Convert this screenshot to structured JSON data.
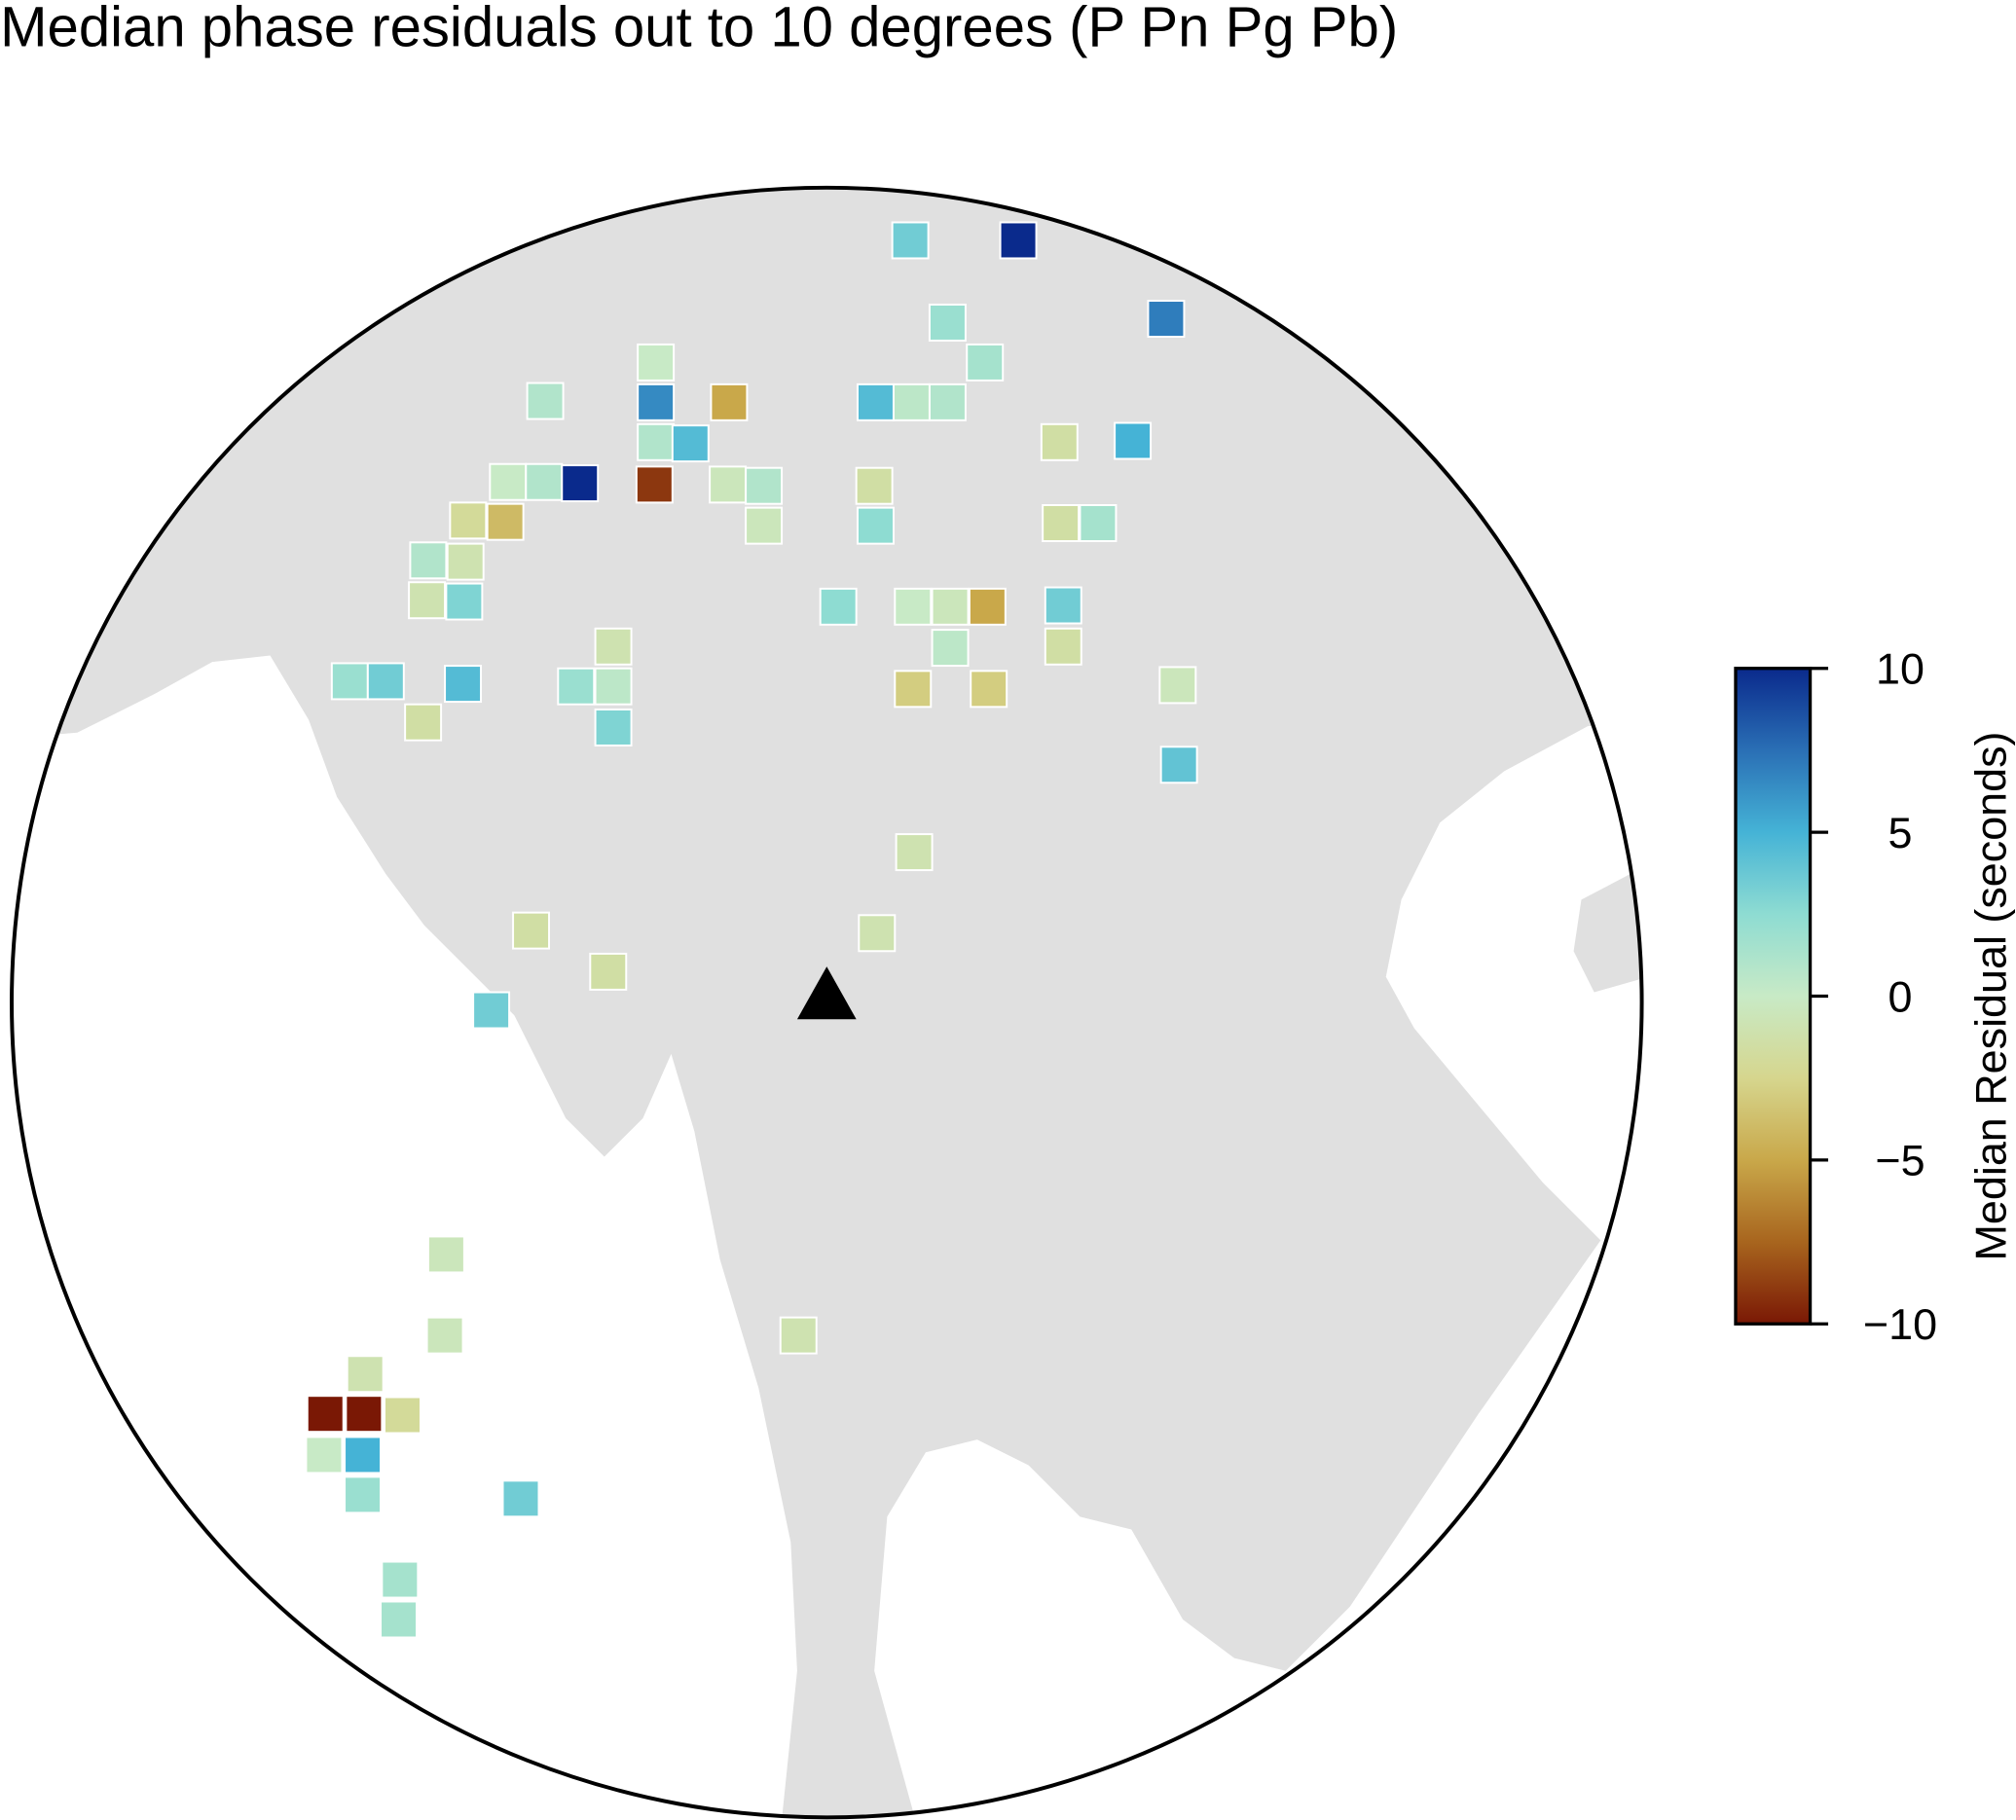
{
  "title": "Median phase residuals out to 10 degrees (P Pn Pg Pb)",
  "colorbar": {
    "label": "Median Residual (seconds)",
    "clim": [
      -10,
      10
    ],
    "ticks": [
      {
        "value": 10,
        "label": "10"
      },
      {
        "value": 5,
        "label": "5"
      },
      {
        "value": 0,
        "label": "0"
      },
      {
        "value": -5,
        "label": "−5"
      },
      {
        "value": -10,
        "label": "−10"
      }
    ],
    "colormap": [
      "#7a1805",
      "#a8651e",
      "#c9a84a",
      "#d6d68e",
      "#c8eac6",
      "#8edcd2",
      "#45b3d6",
      "#2a6fb5",
      "#0a2a8c"
    ]
  },
  "stations": {
    "values": [
      3.5,
      10,
      7,
      2,
      1.5,
      0,
      1,
      6.5,
      -5,
      4.5,
      0.5,
      1,
      5,
      -1.5,
      1,
      4.5,
      0,
      1,
      10,
      -9,
      -0.5,
      1,
      -1.5,
      -2,
      -4,
      -0.5,
      2.5,
      -1.5,
      1.5,
      1,
      -1,
      -1,
      3,
      2.5,
      0,
      -0.5,
      -5,
      3.5,
      -1,
      0.5,
      -1.5,
      2,
      3.5,
      4.5,
      2,
      0.5,
      -3,
      -3,
      -0.5,
      -1.5,
      3,
      4,
      -1,
      -1.5,
      -1,
      -1.5,
      3.5,
      -0.5,
      -0.5,
      -1,
      -1,
      -10,
      -10,
      -2,
      0,
      5,
      2,
      3.5,
      1.5,
      1.5
    ]
  }
}
